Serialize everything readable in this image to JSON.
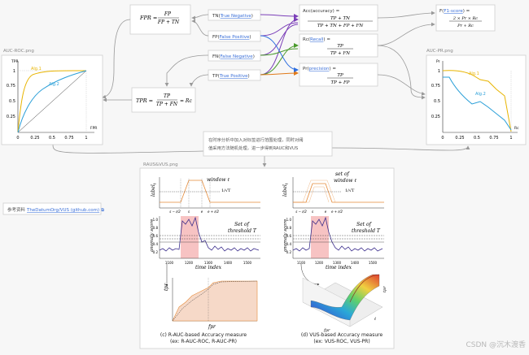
{
  "formulas": {
    "fpr": {
      "lhs": "FPR =",
      "num": "FP",
      "den": "FP + TN"
    },
    "tpr": {
      "lhs": "TPR =",
      "num": "TP",
      "den": "TP + FN",
      "tail": "= Rc"
    },
    "acc": {
      "lhs": "Acc(accuracy) =",
      "num": "TP + TN",
      "den": "TP + TN + FP + FN"
    },
    "rc": {
      "lhs": "Rc(",
      "link": "Recall",
      "rhs": ") =",
      "num": "TP",
      "den": "TP + FN"
    },
    "pr": {
      "lhs": "Pr(",
      "link": "precision",
      "rhs": ") =",
      "num": "TP",
      "den": "TP + FP"
    },
    "f1": {
      "lhs": "F(",
      "link": "F1-score",
      "rhs": ") =",
      "num": "2 × Pr × Rc",
      "den": "Pr + Rc"
    }
  },
  "confusion": [
    {
      "abbr": "TN(",
      "link": "True Negative",
      "close": ")"
    },
    {
      "abbr": "FP(",
      "link": "False Positive",
      "close": ")"
    },
    {
      "abbr": "FN(",
      "link": "False Negative",
      "close": ")"
    },
    {
      "abbr": "TP(",
      "link": "True Positive",
      "close": ")"
    }
  ],
  "roc_panel": {
    "caption": "AUC-ROC.png",
    "ylabel": "TPR",
    "xlabel": "FPR",
    "yticks": [
      "1",
      "0.75",
      "0.5",
      "0.25"
    ],
    "xticks": [
      "0",
      "0.25",
      "0.5",
      "0.75",
      "1"
    ],
    "alg1": "Alg.1",
    "alg2": "Alg.2"
  },
  "pr_panel": {
    "caption": "AUC-PR.png",
    "ylabel": "Pr",
    "xlabel": "Rc",
    "yticks": [
      "1",
      "0.75",
      "0.5",
      "0.25"
    ],
    "xticks": [
      "0",
      "0.25",
      "0.5",
      "0.75",
      "1"
    ],
    "alg1": "Alg.1",
    "alg2": "Alg.2"
  },
  "note_text": [
    "在时序分析中加入对标签进行范围处理，同时对阈",
    "值采用方法随机处理，进一步得到RAUC和VUS"
  ],
  "ref": {
    "label": "参考资料",
    "link": "TheDatumOrg/VUS (github.com)",
    "icon": "external-link"
  },
  "vus": {
    "caption": "RAUS&VUS.png",
    "left": {
      "window": "window ℓ",
      "threshold_title": [
        "Set of",
        "threshold T"
      ],
      "caption": [
        "(c) R-AUC-based Accuracy measure",
        "(ex: R-AUC-ROC, R-AUC-PR)"
      ]
    },
    "right": {
      "window": [
        "set of",
        "window ℓ"
      ],
      "threshold_title": [
        "Set of",
        "threshold T"
      ],
      "caption": [
        "(d) VUS-based Accuracy measure",
        "(ex: VUS-ROC, VUS-PR)"
      ]
    },
    "label_axis": "label",
    "label_sub": "t",
    "anomaly_axis": "anomaly score",
    "time_axis": "time index",
    "time_ticks": [
      "1100",
      "1200",
      "1300",
      "1400",
      "1500"
    ],
    "score_ticks": [
      "1.0",
      "0.8",
      "0.6",
      "0.4",
      "0.2"
    ],
    "sqrt_label": "1/√T",
    "s_labels": [
      "s − ℓ/2",
      "s",
      "e",
      "e + ℓ/2"
    ],
    "tpr": "tpr",
    "fpr": "fpr",
    "surface_axes": {
      "x": "fpr",
      "y": "ℓ",
      "z": "tpr"
    }
  },
  "watermark": "CSDN @沉木渡香",
  "colors": {
    "alg1": "#e8b400",
    "alg2": "#2a9fd8",
    "orange": "#e58b3a",
    "purple": "#3b2d8c",
    "fill": "#f6d9c8",
    "anomaly": "#f4a9a9",
    "purple_arrow": "#7b3fb8",
    "green_arrow": "#4a9a2c",
    "blue_arrow": "#2f6fe0",
    "orange_arrow": "#e07a1a"
  }
}
